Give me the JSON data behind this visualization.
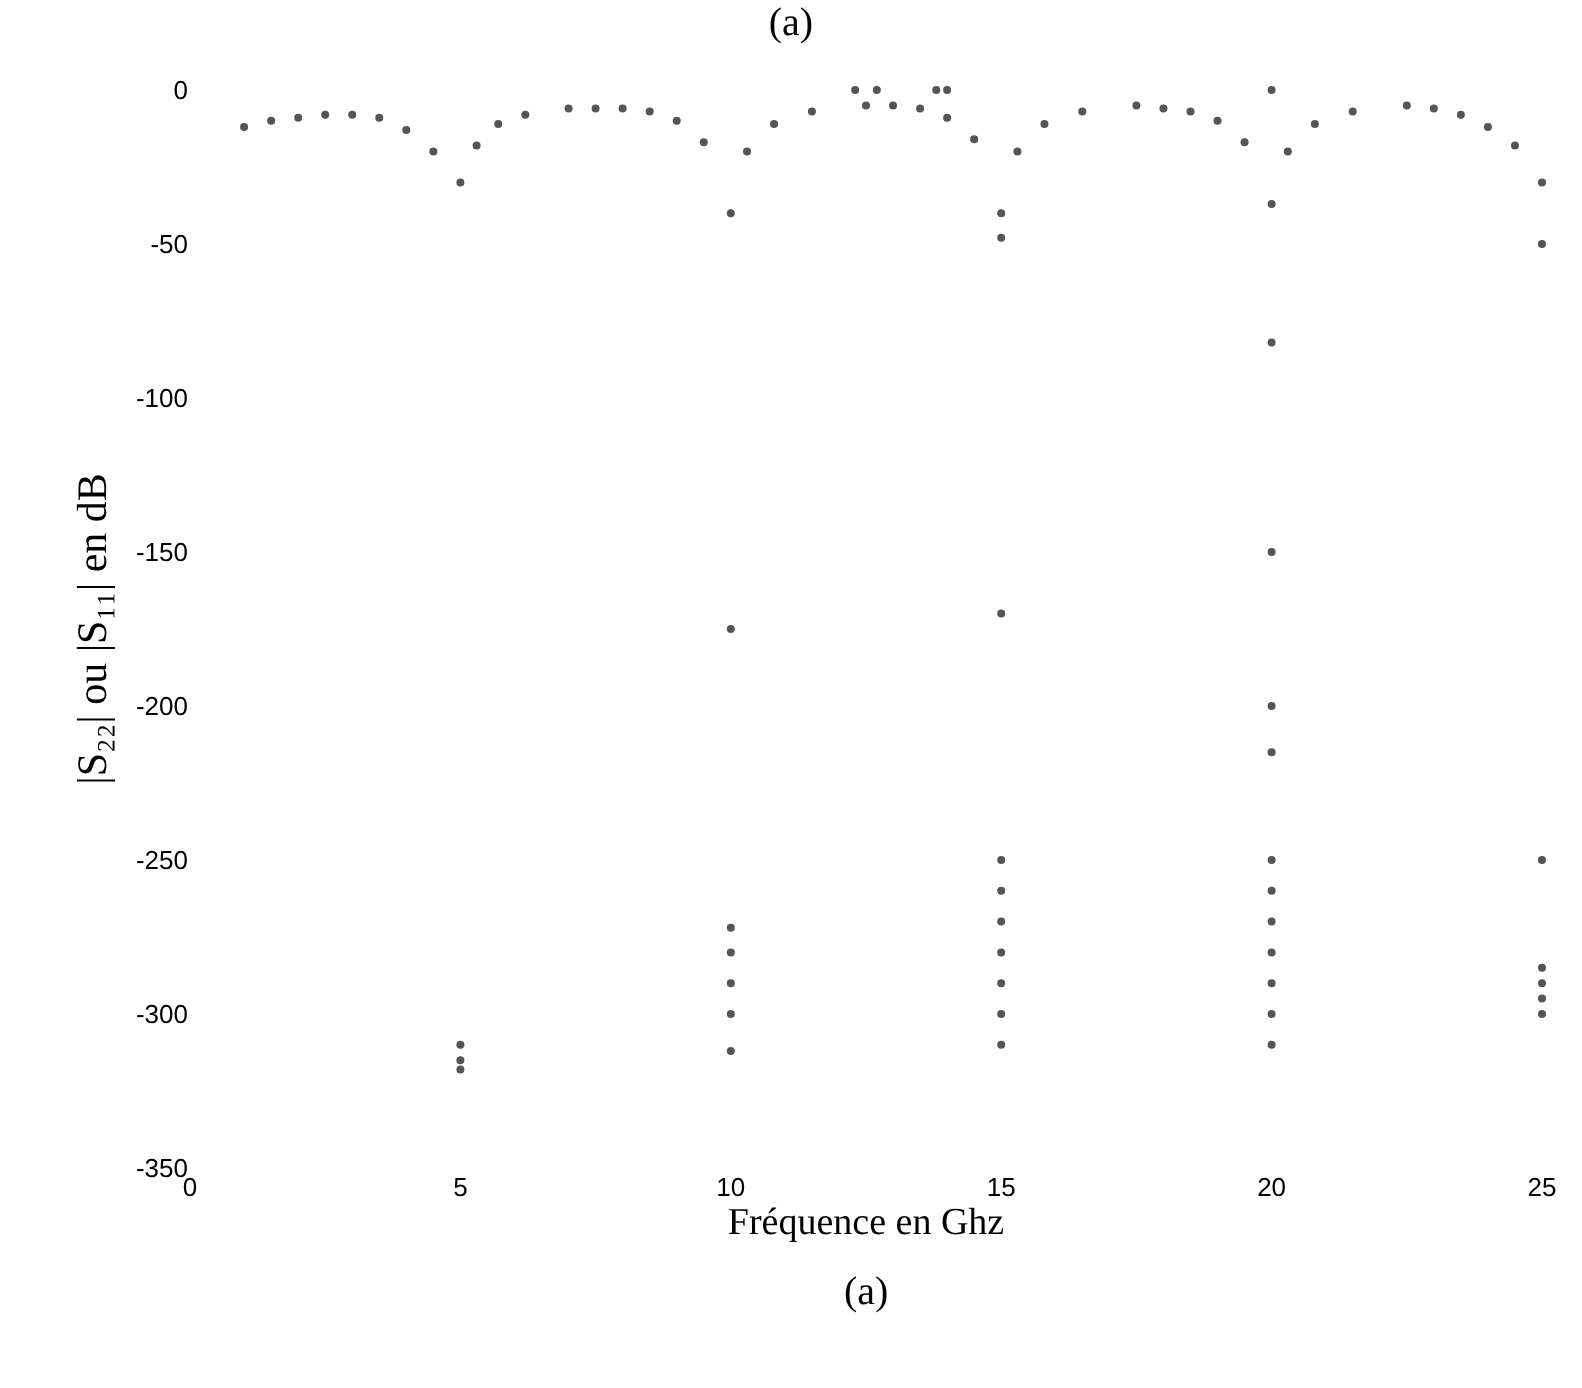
{
  "chart_data": {
    "type": "scatter",
    "title": "(a)",
    "xlabel": "Fréquence en Ghz",
    "ylabel": "|S₂₂| ou |S₁₁| en dB",
    "annotations": [
      "(a)"
    ],
    "x": [
      1,
      1.5,
      2,
      2.5,
      3,
      3.5,
      4,
      4.5,
      5,
      5.3,
      5.7,
      6.2,
      7,
      7.5,
      8,
      8.5,
      9,
      9.5,
      10,
      10.3,
      10.8,
      11.5,
      12.5,
      13,
      13.5,
      14,
      14.5,
      15,
      15.3,
      15.8,
      16.5,
      17.5,
      18,
      18.5,
      19,
      19.5,
      20,
      20.3,
      20.8,
      21.5,
      22.5,
      23,
      23.5,
      24,
      24.5,
      25,
      12.3,
      12.7,
      13.8,
      14.0,
      20,
      5,
      5,
      5,
      10,
      10,
      10,
      10,
      10,
      10,
      15,
      15,
      15,
      15,
      15,
      15,
      15,
      15,
      15,
      20,
      20,
      20,
      20,
      20,
      20,
      20,
      20,
      20,
      20,
      20,
      25,
      25,
      25,
      25,
      25,
      25
    ],
    "series": [
      {
        "color": "#555555",
        "values": [
          -12,
          -10,
          -9,
          -8,
          -8,
          -9,
          -13,
          -20,
          -30,
          -18,
          -11,
          -8,
          -6,
          -6,
          -6,
          -7,
          -10,
          -17,
          -40,
          -20,
          -11,
          -7,
          -5,
          -5,
          -6,
          -9,
          -16,
          -40,
          -20,
          -11,
          -7,
          -5,
          -6,
          -7,
          -10,
          -17,
          -37,
          -20,
          -11,
          -7,
          -5,
          -6,
          -8,
          -12,
          -18,
          -30,
          0,
          0,
          0,
          0,
          0,
          -310,
          -315,
          -318,
          -175,
          -272,
          -280,
          -290,
          -300,
          -312,
          -48,
          -170,
          -250,
          -260,
          -270,
          -280,
          -290,
          -300,
          -310,
          -82,
          -150,
          -200,
          -215,
          -250,
          -260,
          -270,
          -280,
          -290,
          -300,
          -310,
          -50,
          -250,
          -285,
          -290,
          -295,
          -300
        ]
      }
    ],
    "xlim": [
      0,
      25
    ],
    "xticks": [
      0,
      5,
      10,
      15,
      20,
      25
    ],
    "ylim": [
      -350,
      0
    ],
    "yticks": [
      0,
      -50,
      -100,
      -150,
      -200,
      -250,
      -300,
      -350
    ],
    "marker": "circle"
  }
}
